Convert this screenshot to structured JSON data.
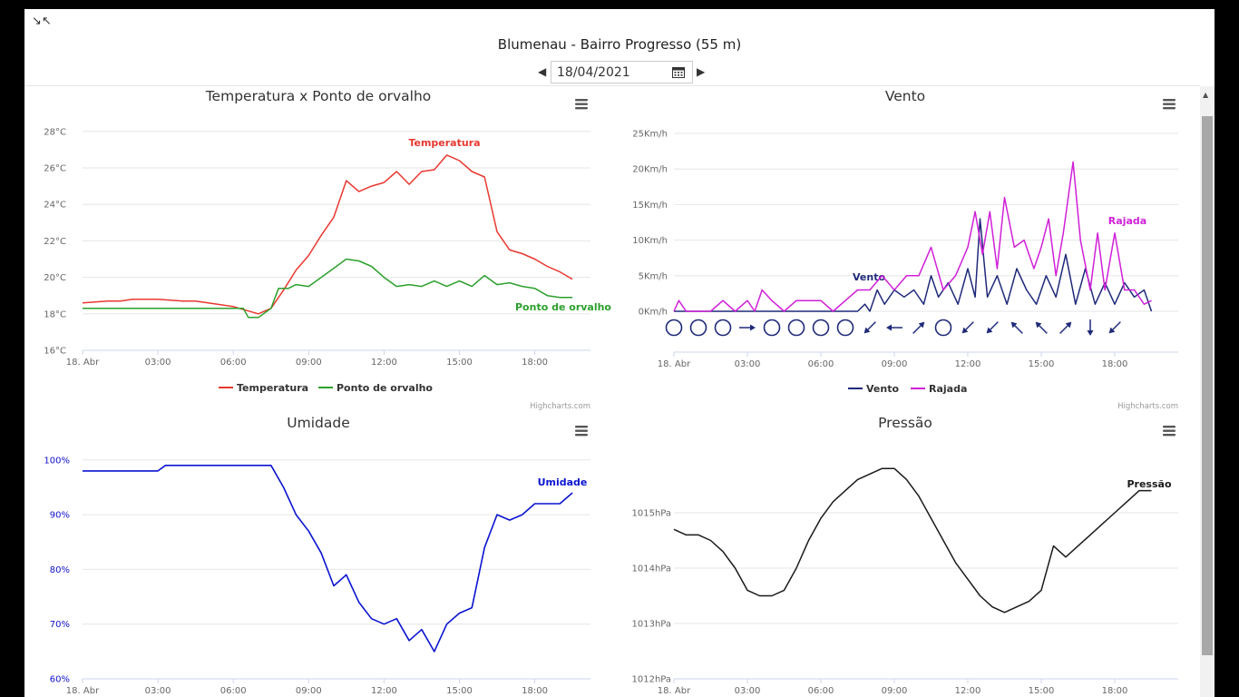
{
  "header": {
    "title": "Blumenau - Bairro Progresso (55 m)",
    "date_value": "18/04/2021"
  },
  "chart_data": [
    {
      "type": "line",
      "title": "Temperatura x Ponto de orvalho",
      "x_axis": {
        "start": "18. Abr 00:00",
        "end": "18. Abr 20:00",
        "tick_labels": [
          "18. Abr",
          "03:00",
          "06:00",
          "09:00",
          "12:00",
          "15:00",
          "18:00"
        ]
      },
      "y_axis": {
        "range": [
          16,
          28
        ],
        "unit": "°C",
        "tick_labels": [
          "16°C",
          "18°C",
          "20°C",
          "22°C",
          "24°C",
          "26°C",
          "28°C"
        ]
      },
      "grid": true,
      "legend": "bottom-center",
      "credits": "Highcharts.com",
      "series": [
        {
          "name": "Temperatura",
          "color": "#e8382f",
          "end_label": "Temperatura",
          "x_hours": [
            0,
            1,
            1.5,
            2,
            2.5,
            3,
            4,
            4.5,
            5,
            5.5,
            6,
            6.5,
            7,
            7.5,
            8,
            8.5,
            9,
            9.5,
            10,
            10.5,
            11,
            11.5,
            12,
            12.5,
            13,
            13.5,
            14,
            14.5,
            15,
            15.5,
            16,
            16.5,
            17,
            17.5,
            18,
            18.5,
            19,
            19.5
          ],
          "values": [
            18.6,
            18.7,
            18.7,
            18.8,
            18.8,
            18.8,
            18.7,
            18.7,
            18.6,
            18.5,
            18.4,
            18.2,
            18.0,
            18.3,
            19.3,
            20.4,
            21.2,
            22.3,
            23.3,
            25.3,
            24.7,
            25.0,
            25.2,
            25.8,
            25.1,
            25.8,
            25.9,
            26.7,
            26.4,
            25.8,
            25.5,
            22.5,
            21.5,
            21.3,
            21.0,
            20.6,
            20.3,
            19.9
          ]
        },
        {
          "name": "Ponto de orvalho",
          "color": "#2ca02c",
          "end_label": "Ponto de orvalho",
          "x_hours": [
            0,
            1,
            2,
            3,
            4,
            5,
            6.4,
            6.6,
            7.0,
            7.5,
            7.8,
            8.2,
            8.5,
            9.0,
            10.0,
            10.5,
            11.0,
            11.5,
            12.0,
            12.5,
            13.0,
            13.5,
            14.0,
            14.5,
            15.0,
            15.5,
            16.0,
            16.5,
            17.0,
            17.5,
            18.0,
            18.5,
            19.0,
            19.5
          ],
          "values": [
            18.3,
            18.3,
            18.3,
            18.3,
            18.3,
            18.3,
            18.3,
            17.8,
            17.8,
            18.3,
            19.4,
            19.4,
            19.6,
            19.5,
            20.5,
            21.0,
            20.9,
            20.6,
            20.0,
            19.5,
            19.6,
            19.5,
            19.8,
            19.5,
            19.8,
            19.5,
            20.1,
            19.6,
            19.7,
            19.5,
            19.4,
            19.0,
            18.9,
            18.9
          ]
        }
      ]
    },
    {
      "type": "line",
      "title": "Vento",
      "x_axis": {
        "start": "18. Abr 00:00",
        "end": "18. Abr 20:00",
        "tick_labels": [
          "18. Abr",
          "03:00",
          "06:00",
          "09:00",
          "12:00",
          "15:00",
          "18:00"
        ]
      },
      "y_axis": {
        "range": [
          0,
          25
        ],
        "unit": "Km/h",
        "tick_labels": [
          "0Km/h",
          "5Km/h",
          "10Km/h",
          "15Km/h",
          "20Km/h",
          "25Km/h"
        ]
      },
      "grid": true,
      "legend": "bottom-center",
      "credits": "Highcharts.com",
      "series": [
        {
          "name": "Vento",
          "color": "#1f2a7a",
          "end_label": "Vento",
          "x_hours": [
            0,
            7.5,
            7.8,
            8.0,
            8.3,
            8.6,
            9.0,
            9.4,
            9.8,
            10.2,
            10.5,
            10.8,
            11.2,
            11.6,
            12.0,
            12.3,
            12.5,
            12.8,
            13.2,
            13.6,
            14.0,
            14.4,
            14.8,
            15.2,
            15.6,
            16.0,
            16.4,
            16.8,
            17.2,
            17.6,
            18.0,
            18.4,
            18.8,
            19.2,
            19.5
          ],
          "values": [
            0,
            0,
            1,
            0,
            3,
            1,
            3,
            2,
            3,
            1,
            5,
            2,
            4,
            1,
            6,
            2,
            13,
            2,
            5,
            1,
            6,
            3,
            1,
            5,
            2,
            8,
            1,
            6,
            1,
            4,
            1,
            4,
            2,
            3,
            0
          ]
        },
        {
          "name": "Rajada",
          "color": "#d020d8",
          "end_label": "Rajada",
          "x_hours": [
            0,
            0.2,
            0.5,
            1.5,
            2.0,
            2.5,
            3.0,
            3.3,
            3.6,
            4.0,
            4.5,
            5.0,
            6.0,
            6.5,
            7.0,
            7.5,
            8.0,
            8.5,
            9.0,
            9.5,
            10.0,
            10.5,
            11.0,
            11.5,
            12.0,
            12.3,
            12.6,
            12.9,
            13.2,
            13.5,
            13.9,
            14.3,
            14.7,
            15.0,
            15.3,
            15.6,
            15.9,
            16.3,
            16.6,
            17.0,
            17.3,
            17.6,
            18.0,
            18.4,
            18.8,
            19.2,
            19.5
          ],
          "values": [
            0,
            1.5,
            0,
            0,
            1.5,
            0,
            1.5,
            0,
            3,
            1.5,
            0,
            1.5,
            1.5,
            0,
            1.5,
            3,
            3,
            5,
            3,
            5,
            5,
            9,
            3,
            5,
            9,
            14,
            8,
            14,
            6,
            16,
            9,
            10,
            6,
            9,
            13,
            5,
            11,
            21,
            10,
            3,
            11,
            3,
            11,
            3,
            3,
            1,
            1.5
          ]
        }
      ],
      "wind_direction_icons": [
        "calm",
        "calm",
        "calm",
        "E",
        "calm",
        "calm",
        "calm",
        "calm",
        "SW",
        "W",
        "NE",
        "calm",
        "SW",
        "SW",
        "NW",
        "NW",
        "NE",
        "S",
        "SW"
      ]
    },
    {
      "type": "line",
      "title": "Umidade",
      "x_axis": {
        "start": "18. Abr 00:00",
        "end": "18. Abr 20:00",
        "tick_labels": [
          "18. Abr",
          "03:00",
          "06:00",
          "09:00",
          "12:00",
          "15:00",
          "18:00"
        ]
      },
      "y_axis": {
        "range": [
          60,
          100
        ],
        "unit": "%",
        "tick_labels": [
          "60%",
          "70%",
          "80%",
          "90%",
          "100%"
        ]
      },
      "grid": true,
      "series": [
        {
          "name": "Umidade",
          "color": "#0a14d0",
          "end_label": "Umidade",
          "x_hours": [
            0,
            1,
            2,
            3,
            3.3,
            3.6,
            4.5,
            5.5,
            6.5,
            7.5,
            8.0,
            8.5,
            9.0,
            9.5,
            10.0,
            10.5,
            11.0,
            11.5,
            12.0,
            12.5,
            13.0,
            13.5,
            14.0,
            14.5,
            15.0,
            15.5,
            16.0,
            16.5,
            17.0,
            17.5,
            18.0,
            18.5,
            19.0,
            19.5
          ],
          "values": [
            98,
            98,
            98,
            98,
            99,
            99,
            99,
            99,
            99,
            99,
            95,
            90,
            87,
            83,
            77,
            79,
            74,
            71,
            70,
            71,
            67,
            69,
            65,
            70,
            72,
            73,
            84,
            90,
            89,
            90,
            92,
            92,
            92,
            94
          ]
        }
      ]
    },
    {
      "type": "line",
      "title": "Pressão",
      "x_axis": {
        "start": "18. Abr 00:00",
        "end": "18. Abr 20:00",
        "tick_labels": [
          "18. Abr",
          "03:00",
          "06:00",
          "09:00",
          "12:00",
          "15:00",
          "18:00"
        ]
      },
      "y_axis": {
        "range": [
          1012,
          1015.8
        ],
        "unit": "hPa",
        "tick_labels": [
          "1012hPa",
          "1013hPa",
          "1014hPa",
          "1015hPa"
        ]
      },
      "grid": true,
      "series": [
        {
          "name": "Pressão",
          "color": "#1a1a1a",
          "end_label": "Pressão",
          "x_hours": [
            0,
            0.5,
            1,
            1.5,
            2,
            2.5,
            3,
            3.5,
            4,
            4.5,
            5,
            5.5,
            6,
            6.5,
            7,
            7.5,
            8,
            8.5,
            9,
            9.5,
            10,
            10.5,
            11,
            11.5,
            12,
            12.5,
            13,
            13.5,
            14,
            14.5,
            15,
            15.5,
            16,
            16.5,
            17,
            17.5,
            18,
            18.5,
            19,
            19.5
          ],
          "values": [
            1014.7,
            1014.6,
            1014.6,
            1014.5,
            1014.3,
            1014.0,
            1013.6,
            1013.5,
            1013.5,
            1013.6,
            1014.0,
            1014.5,
            1014.9,
            1015.2,
            1015.4,
            1015.6,
            1015.7,
            1015.8,
            1015.8,
            1015.6,
            1015.3,
            1014.9,
            1014.5,
            1014.1,
            1013.8,
            1013.5,
            1013.3,
            1013.2,
            1013.3,
            1013.4,
            1013.6,
            1014.4,
            1014.2,
            1014.4,
            1014.6,
            1014.8,
            1015.0,
            1015.2,
            1015.4,
            1015.4
          ]
        }
      ]
    }
  ]
}
